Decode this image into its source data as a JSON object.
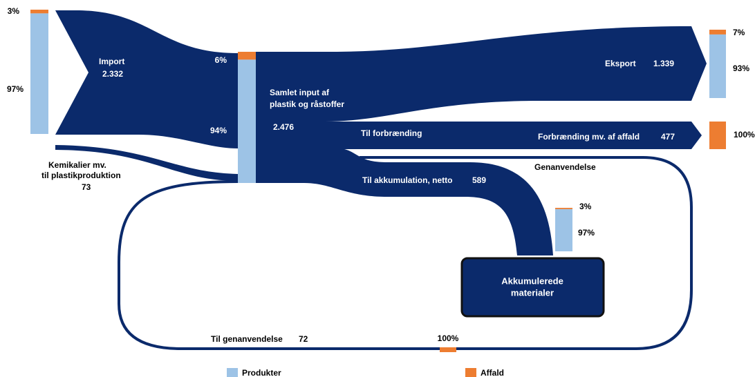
{
  "flows": {
    "import": {
      "label": "Import",
      "value": "2.332"
    },
    "chemicals": {
      "label_lines": [
        "Kemikalier mv.",
        "til plastikproduktion"
      ],
      "value": "73"
    },
    "total_input": {
      "label_lines": [
        "Samlet input af",
        "plastik og råstoffer"
      ],
      "value": "2.476"
    },
    "to_incineration": {
      "label": "Til forbrænding"
    },
    "export": {
      "label": "Eksport",
      "value": "1.339"
    },
    "incineration": {
      "label": "Forbrænding mv. af affald",
      "value": "477"
    },
    "accumulation": {
      "label": "Til akkumulation, netto",
      "value": "589"
    },
    "recycling_return": {
      "label": "Genanvendelse"
    },
    "to_recycling": {
      "label": "Til genanvendelse",
      "value": "72"
    }
  },
  "accumulated_box": {
    "label_lines": [
      "Akkumulerede",
      "materialer"
    ]
  },
  "bars": [
    {
      "affald": {
        "value": 3,
        "label": "3%"
      },
      "produkter": {
        "value": 97,
        "label": "97%"
      }
    },
    {
      "affald": {
        "value": 6,
        "label": "6%"
      },
      "produkter": {
        "value": 94,
        "label": "94%"
      }
    },
    {
      "affald": {
        "value": 7,
        "label": "7%"
      },
      "produkter": {
        "value": 93,
        "label": "93%"
      }
    },
    {
      "affald": {
        "value": 100,
        "label": "100%"
      }
    },
    {
      "affald": {
        "value": 3,
        "label": "3%"
      },
      "produkter": {
        "value": 97,
        "label": "97%"
      }
    },
    {
      "affald": {
        "value": 100,
        "label": "100%"
      }
    }
  ],
  "legend": {
    "produkter": {
      "label": "Produkter",
      "color": "#9dc3e6"
    },
    "affald": {
      "label": "Affald",
      "color": "#ed7d31"
    }
  }
}
